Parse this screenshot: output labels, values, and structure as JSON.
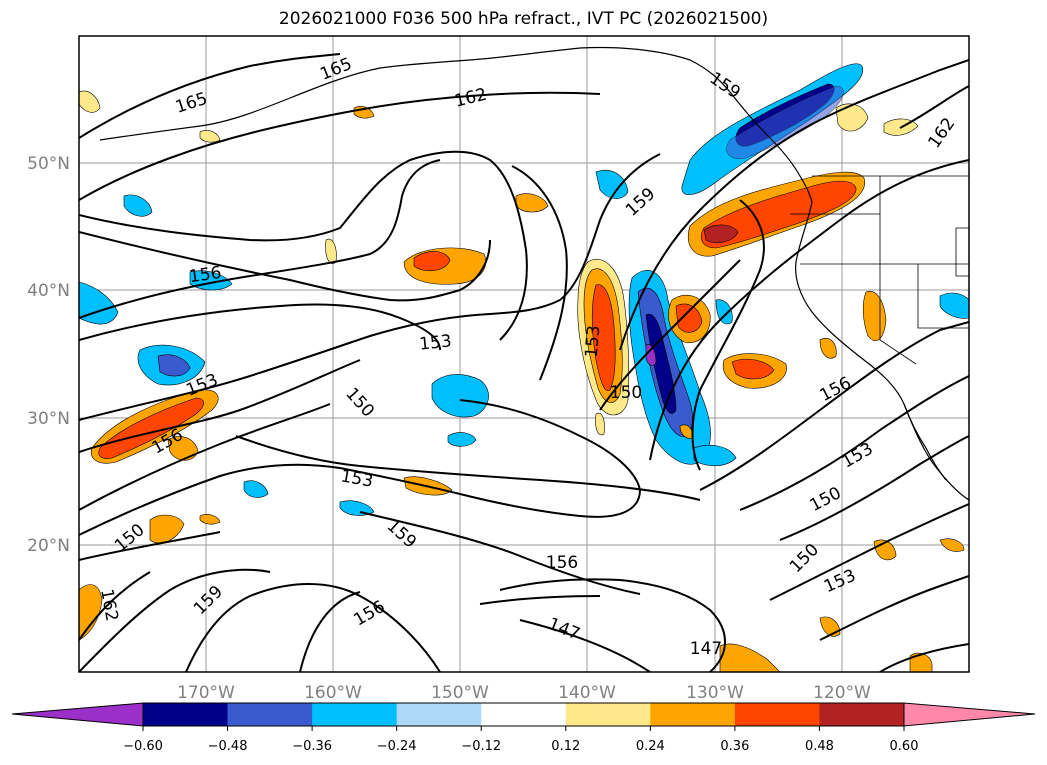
{
  "title": "2026021000 F036 500 hPa refract., IVT PC (2026021500)",
  "map": {
    "lon_range": [
      -180,
      -110
    ],
    "lat_range": [
      10,
      60
    ],
    "grid": true,
    "lat_labels": [
      "20°N",
      "30°N",
      "40°N",
      "50°N"
    ],
    "lon_labels": [
      "170°W",
      "160°W",
      "150°W",
      "140°W",
      "130°W",
      "120°W"
    ],
    "contour_labels": [
      "165",
      "165",
      "162",
      "159",
      "162",
      "159",
      "156",
      "153",
      "153",
      "150",
      "156",
      "150",
      "153",
      "150",
      "156",
      "153",
      "159",
      "150",
      "153",
      "156",
      "150",
      "147",
      "153",
      "159",
      "156",
      "147"
    ]
  },
  "colorbar": {
    "ticks": [
      "−0.60",
      "−0.48",
      "−0.36",
      "−0.24",
      "−0.12",
      "0.12",
      "0.24",
      "0.36",
      "0.48",
      "0.60"
    ],
    "colors": [
      "#9b30c8",
      "#00008b",
      "#3a5bd0",
      "#00bfff",
      "#add8f6",
      "#ffffff",
      "#ffe98a",
      "#ffa500",
      "#ff4500",
      "#b22222",
      "#ff88aa"
    ]
  },
  "colors": {
    "neg_extreme": "#9b30c8",
    "neg_high": "#00008b",
    "neg_mid": "#3a5bd0",
    "neg_low": "#00bfff",
    "neg_faint": "#add8f6",
    "pos_faint": "#ffe98a",
    "pos_low": "#ffa500",
    "pos_mid": "#ff4500",
    "pos_high": "#b22222",
    "pos_extreme": "#ff88aa"
  }
}
